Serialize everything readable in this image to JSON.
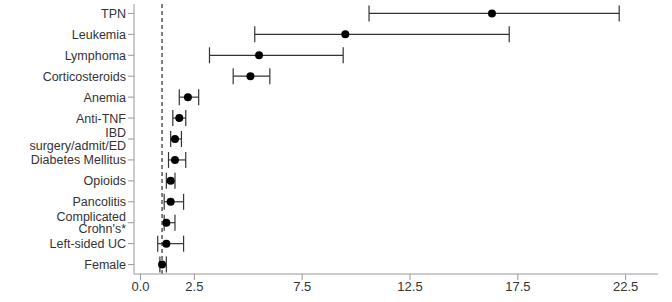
{
  "chart_data": {
    "type": "scatter",
    "orientation": "horizontal",
    "categories": [
      "TPN",
      "Leukemia",
      "Lymphoma",
      "Corticosteroids",
      "Anemia",
      "Anti-TNF",
      "IBD surgery/admit/ED",
      "Diabetes Mellitus",
      "Opioids",
      "Pancolitis",
      "Complicated Crohn's*",
      "Left-sided UC",
      "Female"
    ],
    "values": [
      16.3,
      9.5,
      5.5,
      5.1,
      2.2,
      1.8,
      1.6,
      1.6,
      1.4,
      1.4,
      1.2,
      1.2,
      1.0
    ],
    "ci_lower": [
      10.6,
      5.3,
      3.2,
      4.3,
      1.8,
      1.5,
      1.4,
      1.3,
      1.2,
      1.1,
      1.1,
      0.8,
      0.9
    ],
    "ci_upper": [
      22.2,
      17.1,
      9.4,
      6.0,
      2.7,
      2.1,
      1.9,
      2.1,
      1.6,
      2.0,
      1.6,
      2.0,
      1.2
    ],
    "reference_x": 1,
    "xlim": [
      -0.3,
      24
    ],
    "xticks": [
      {
        "value": 0,
        "label": "0.0"
      },
      2.5,
      7.5,
      12.5,
      17.5,
      22.5
    ],
    "color": "#000000",
    "marker": "circle",
    "grid": false
  }
}
